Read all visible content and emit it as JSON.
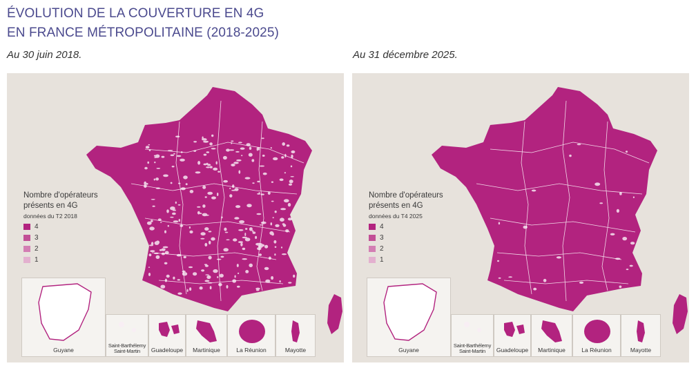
{
  "header": {
    "title_line1": "ÉVOLUTION DE LA COUVERTURE EN 4G",
    "title_line2": "EN FRANCE MÉTROPOLITAINE (2018-2025)"
  },
  "maps": [
    {
      "subtitle": "Au 30 juin 2018.",
      "legend": {
        "title_line1": "Nombre d'opérateurs",
        "title_line2": "présents en 4G",
        "note": "données du T2 2018",
        "items": [
          {
            "label": "4",
            "color": "#b2237f"
          },
          {
            "label": "3",
            "color": "#c24f96"
          },
          {
            "label": "2",
            "color": "#d37eb3"
          },
          {
            "label": "1",
            "color": "#e3b0cf"
          }
        ]
      },
      "coverage_holes": "many",
      "insets": [
        "Guyane",
        "Saint-Barthélemy",
        "Saint-Martin",
        "Guadeloupe",
        "Martinique",
        "La Réunion",
        "Mayotte"
      ]
    },
    {
      "subtitle": "Au 31 décembre 2025.",
      "legend": {
        "title_line1": "Nombre d'opérateurs",
        "title_line2": "présents en 4G",
        "note": "données du T4 2025",
        "items": [
          {
            "label": "4",
            "color": "#b2237f"
          },
          {
            "label": "3",
            "color": "#c24f96"
          },
          {
            "label": "2",
            "color": "#d37eb3"
          },
          {
            "label": "1",
            "color": "#e3b0cf"
          }
        ]
      },
      "coverage_holes": "few",
      "insets": [
        "Guyane",
        "Saint-Barthélemy",
        "Saint-Martin",
        "Guadeloupe",
        "Martinique",
        "La Réunion",
        "Mayotte"
      ]
    }
  ],
  "colors": {
    "title": "#4b4a8e",
    "map_fill": "#b2237f",
    "background": "#e7e2dc",
    "borders": "#f2d9e8"
  }
}
